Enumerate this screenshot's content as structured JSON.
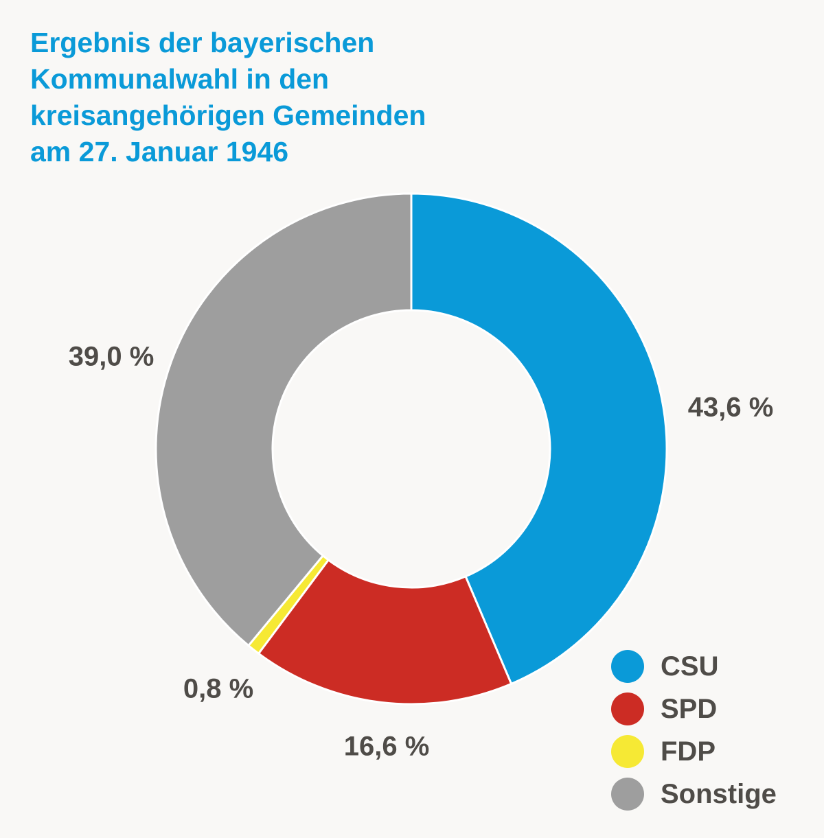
{
  "title_lines": [
    "Ergebnis der bayerischen",
    "Kommunalwahl in den",
    "kreisangehörigen Gemeinden",
    "am 27. Januar 1946"
  ],
  "chart_data": {
    "type": "pie",
    "variant": "donut",
    "title": "Ergebnis der bayerischen Kommunalwahl in den kreisangehörigen Gemeinden am 27. Januar 1946",
    "categories": [
      "CSU",
      "SPD",
      "FDP",
      "Sonstige"
    ],
    "values": [
      43.6,
      16.6,
      0.8,
      39.0
    ],
    "unit": "%",
    "data_labels": [
      "43,6 %",
      "16,6 %",
      "0,8 %",
      "39,0 %"
    ],
    "colors": [
      "#0a9ad8",
      "#cc2c24",
      "#f6e934",
      "#9e9e9e"
    ],
    "legend_position": "bottom-right",
    "start_angle": "12 o'clock",
    "direction": "clockwise"
  },
  "legend": {
    "items": [
      {
        "label": "CSU",
        "color": "#0a9ad8"
      },
      {
        "label": "SPD",
        "color": "#cc2c24"
      },
      {
        "label": "FDP",
        "color": "#f6e934"
      },
      {
        "label": "Sonstige",
        "color": "#9e9e9e"
      }
    ]
  }
}
